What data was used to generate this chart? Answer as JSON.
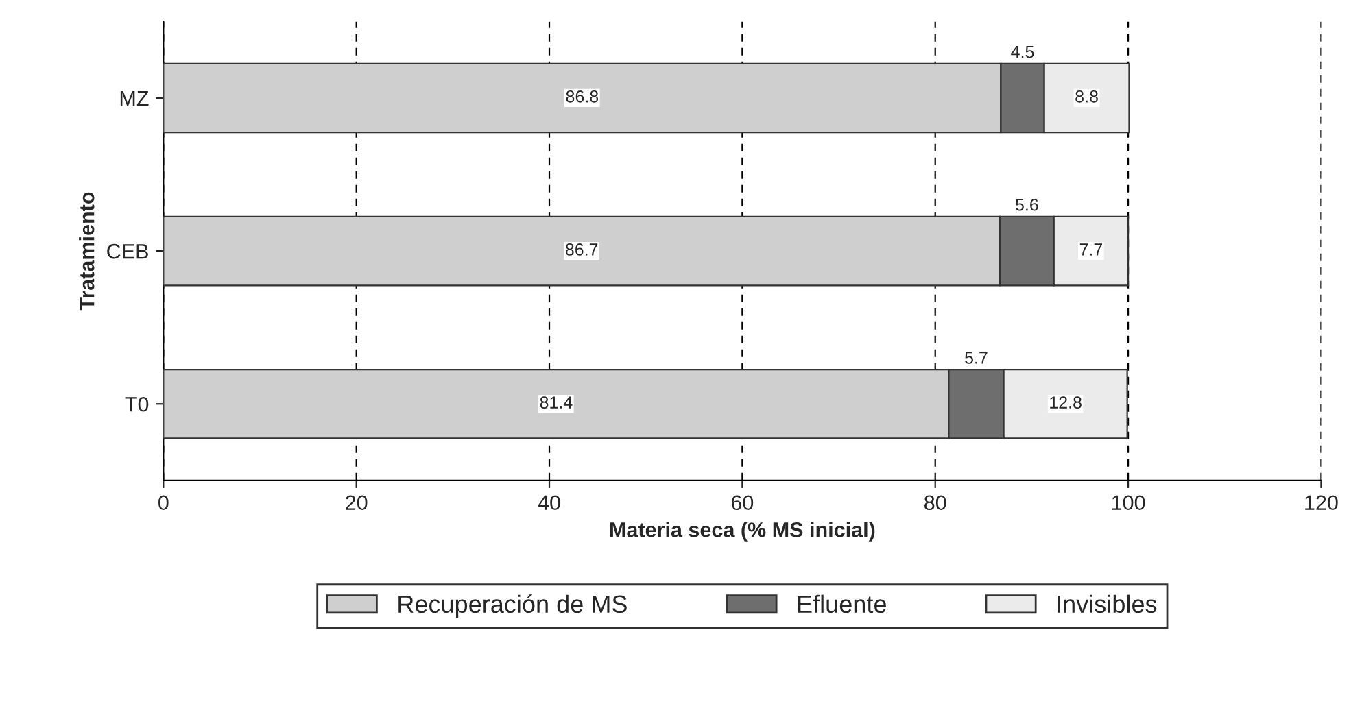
{
  "chart_data": {
    "type": "bar",
    "orientation": "horizontal",
    "stacked": true,
    "xlabel": "Materia seca (% MS inicial)",
    "ylabel": "Tratamiento",
    "categories": [
      "MZ",
      "CEB",
      "T0"
    ],
    "series": [
      {
        "name": "Recuperación de MS",
        "color": "#cfcfcf",
        "values": [
          86.8,
          86.7,
          81.4
        ]
      },
      {
        "name": "Efluente",
        "color": "#6e6e6e",
        "values": [
          4.5,
          5.6,
          5.7
        ]
      },
      {
        "name": "Invisibles",
        "color": "#ebebeb",
        "values": [
          8.8,
          7.7,
          12.8
        ]
      }
    ],
    "xlim": [
      0,
      120
    ],
    "xticks": [
      0,
      20,
      40,
      60,
      80,
      100,
      120
    ],
    "grid": "x",
    "legend": "bottom",
    "data_labels": true
  }
}
